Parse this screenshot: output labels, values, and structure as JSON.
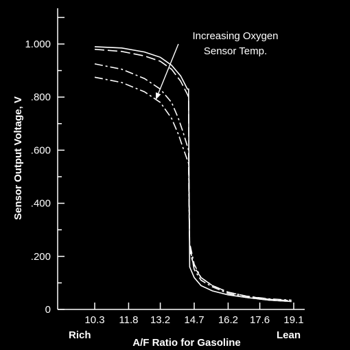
{
  "chart_data": {
    "type": "line",
    "xlabel": "A/F Ratio for Gasoline",
    "ylabel": "Sensor Output Voltage, V",
    "x_ticks": [
      "10.3",
      "11.8",
      "13.2",
      "14.7",
      "16.2",
      "17.6",
      "19.1"
    ],
    "y_ticks": [
      "0",
      ".200",
      ".400",
      ".600",
      ".800",
      "1.000"
    ],
    "xlim": [
      8.8,
      19.6
    ],
    "ylim": [
      0,
      1.1
    ],
    "grid": false,
    "x_end_labels": {
      "left": "Rich",
      "right": "Lean"
    },
    "annotation": {
      "lines": [
        "Increasing Oxygen",
        "Sensor Temp."
      ],
      "arrow_from": [
        14.0,
        1.0
      ],
      "arrow_to": [
        13.0,
        0.79
      ]
    },
    "series": [
      {
        "dash": "solid",
        "points": [
          [
            10.3,
            0.99
          ],
          [
            11.5,
            0.985
          ],
          [
            12.5,
            0.97
          ],
          [
            13.2,
            0.95
          ],
          [
            13.7,
            0.92
          ],
          [
            14.1,
            0.88
          ],
          [
            14.4,
            0.83
          ],
          [
            14.45,
            0.83
          ],
          [
            14.47,
            0.5
          ],
          [
            14.5,
            0.16
          ],
          [
            14.7,
            0.12
          ],
          [
            15.0,
            0.09
          ],
          [
            15.5,
            0.07
          ],
          [
            16.2,
            0.055
          ],
          [
            17.0,
            0.045
          ],
          [
            18.0,
            0.035
          ],
          [
            19.0,
            0.03
          ]
        ]
      },
      {
        "dash": "long",
        "points": [
          [
            10.3,
            0.98
          ],
          [
            11.5,
            0.972
          ],
          [
            12.5,
            0.955
          ],
          [
            13.2,
            0.935
          ],
          [
            13.7,
            0.905
          ],
          [
            14.1,
            0.86
          ],
          [
            14.4,
            0.81
          ],
          [
            14.45,
            0.8
          ],
          [
            14.47,
            0.5
          ],
          [
            14.5,
            0.22
          ],
          [
            14.7,
            0.16
          ],
          [
            15.0,
            0.12
          ],
          [
            15.5,
            0.09
          ],
          [
            16.2,
            0.065
          ],
          [
            17.0,
            0.05
          ],
          [
            18.0,
            0.038
          ],
          [
            19.0,
            0.033
          ]
        ]
      },
      {
        "dash": "dashdot",
        "points": [
          [
            10.3,
            0.925
          ],
          [
            11.5,
            0.905
          ],
          [
            12.5,
            0.87
          ],
          [
            13.2,
            0.83
          ],
          [
            13.7,
            0.78
          ],
          [
            14.0,
            0.72
          ],
          [
            14.2,
            0.67
          ],
          [
            14.45,
            0.6
          ],
          [
            14.47,
            0.4
          ],
          [
            14.5,
            0.24
          ],
          [
            14.7,
            0.15
          ],
          [
            15.0,
            0.11
          ],
          [
            15.5,
            0.085
          ],
          [
            16.2,
            0.06
          ],
          [
            17.0,
            0.045
          ],
          [
            18.0,
            0.035
          ],
          [
            19.0,
            0.03
          ]
        ]
      },
      {
        "dash": "dashdot",
        "points": [
          [
            10.3,
            0.875
          ],
          [
            11.5,
            0.855
          ],
          [
            12.5,
            0.82
          ],
          [
            13.2,
            0.78
          ],
          [
            13.7,
            0.72
          ],
          [
            14.0,
            0.66
          ],
          [
            14.2,
            0.61
          ],
          [
            14.45,
            0.55
          ],
          [
            14.47,
            0.38
          ],
          [
            14.5,
            0.25
          ],
          [
            14.7,
            0.17
          ],
          [
            15.0,
            0.12
          ],
          [
            15.5,
            0.09
          ],
          [
            16.2,
            0.065
          ],
          [
            17.0,
            0.05
          ],
          [
            18.0,
            0.04
          ],
          [
            19.0,
            0.035
          ]
        ]
      }
    ]
  }
}
